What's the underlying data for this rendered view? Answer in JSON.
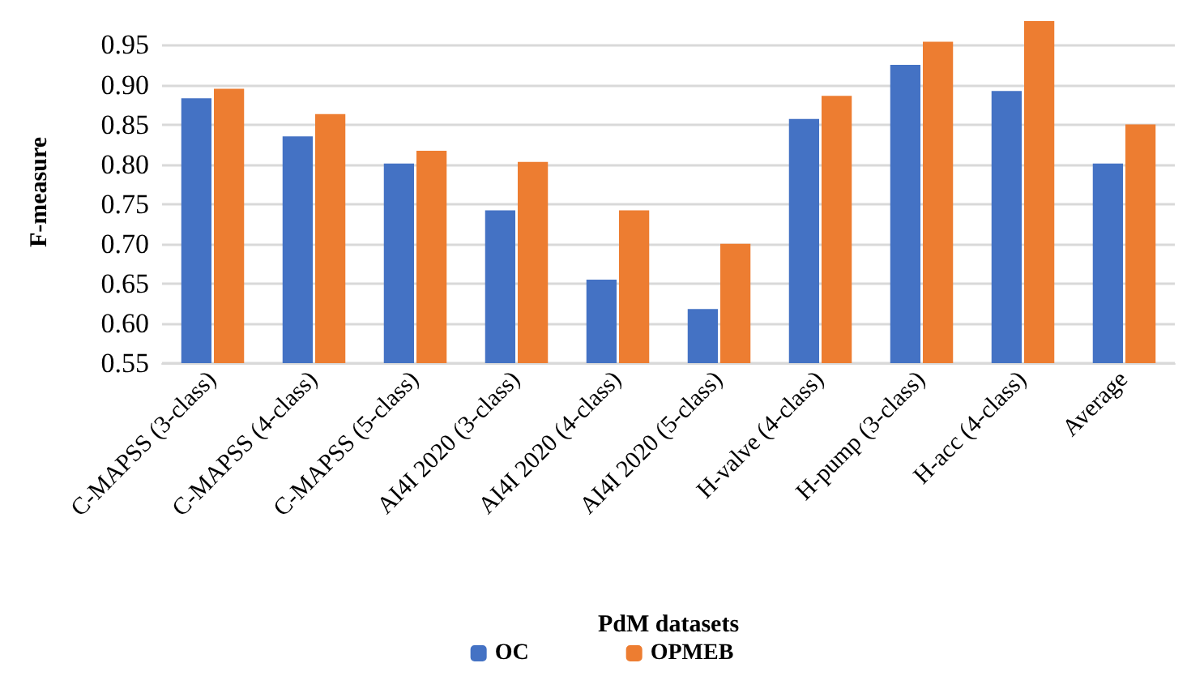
{
  "chart_data": {
    "type": "bar",
    "xlabel": "PdM datasets",
    "ylabel": "F-measure",
    "categories": [
      "C-MAPSS (3-class)",
      "C-MAPSS (4-class)",
      "C-MAPSS (5-class)",
      "AI4I 2020 (3-class)",
      "AI4I 2020 (4-class)",
      "AI4I 2020 (5-class)",
      "H-valve (4-class)",
      "H-pump (3-class)",
      "H-acc (4-class)",
      "Average"
    ],
    "series": [
      {
        "name": "OC",
        "color": "#4472c4",
        "values": [
          0.883,
          0.835,
          0.801,
          0.742,
          0.655,
          0.618,
          0.857,
          0.925,
          0.892,
          0.801
        ]
      },
      {
        "name": "OPMEB",
        "color": "#ed7d31",
        "values": [
          0.895,
          0.863,
          0.817,
          0.803,
          0.742,
          0.7,
          0.886,
          0.954,
          0.98,
          0.85
        ]
      }
    ],
    "ylim": [
      0.55,
      0.98
    ],
    "yticks": [
      {
        "value": 0.55,
        "label": "0.55"
      },
      {
        "value": 0.6,
        "label": "0.60"
      },
      {
        "value": 0.65,
        "label": "0.65"
      },
      {
        "value": 0.7,
        "label": "0.70"
      },
      {
        "value": 0.75,
        "label": "0.75"
      },
      {
        "value": 0.8,
        "label": "0.80"
      },
      {
        "value": 0.85,
        "label": "0.85"
      },
      {
        "value": 0.9,
        "label": "0.90"
      },
      {
        "value": 0.95,
        "label": "0.95"
      }
    ],
    "grid": "y",
    "legend": "bottom"
  }
}
